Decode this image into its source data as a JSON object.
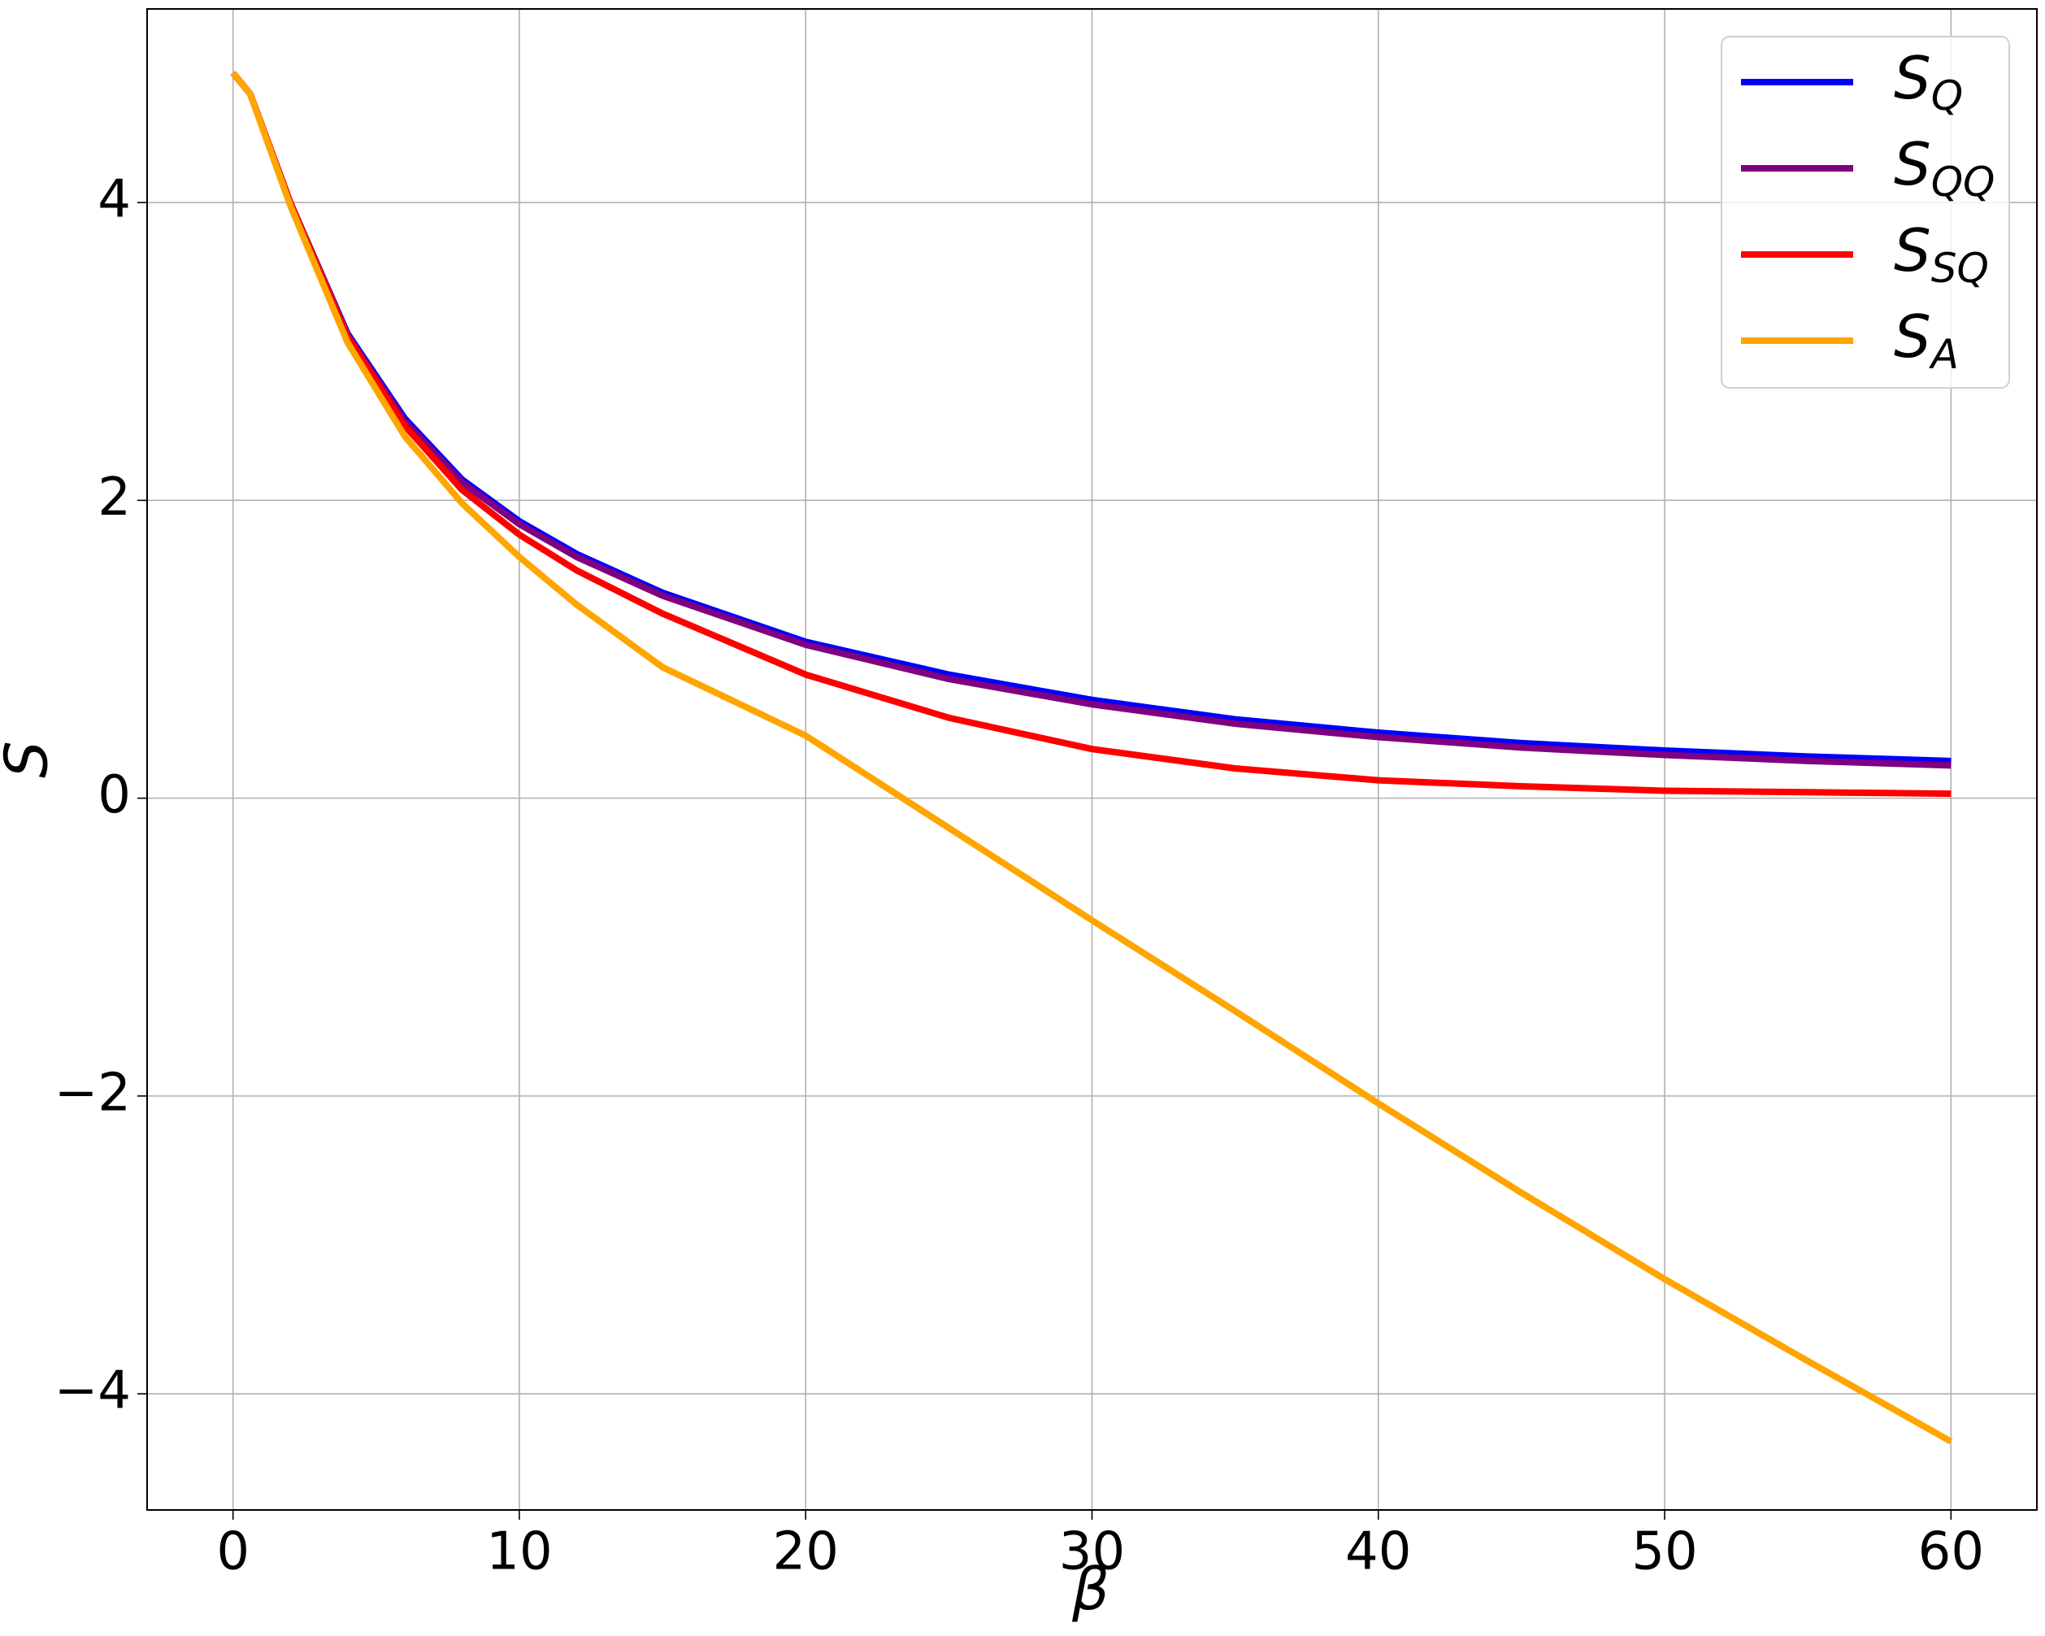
{
  "chart_data": {
    "type": "line",
    "x_label": "β",
    "y_label": "S",
    "x": [
      0,
      0.6,
      2,
      4,
      6,
      8,
      10,
      12,
      15,
      20,
      25,
      30,
      35,
      40,
      45,
      50,
      55,
      60
    ],
    "series": [
      {
        "name": "S_Q",
        "color": "#0000ff",
        "values": [
          4.87,
          4.73,
          4.0,
          3.12,
          2.55,
          2.14,
          1.86,
          1.64,
          1.38,
          1.05,
          0.83,
          0.66,
          0.53,
          0.44,
          0.37,
          0.32,
          0.28,
          0.25
        ]
      },
      {
        "name": "S_QQ",
        "color": "#800080",
        "values": [
          4.87,
          4.73,
          4.0,
          3.11,
          2.53,
          2.12,
          1.84,
          1.62,
          1.36,
          1.03,
          0.8,
          0.63,
          0.5,
          0.41,
          0.34,
          0.29,
          0.25,
          0.22
        ]
      },
      {
        "name": "S_SQ",
        "color": "#ff0000",
        "values": [
          4.87,
          4.73,
          4.0,
          3.1,
          2.5,
          2.07,
          1.77,
          1.53,
          1.24,
          0.83,
          0.54,
          0.33,
          0.2,
          0.12,
          0.08,
          0.05,
          0.04,
          0.03
        ]
      },
      {
        "name": "S_A",
        "color": "#ffa500",
        "values": [
          4.87,
          4.73,
          3.98,
          3.06,
          2.43,
          1.98,
          1.62,
          1.3,
          0.88,
          0.42,
          -0.2,
          -0.82,
          -1.43,
          -2.05,
          -2.65,
          -3.23,
          -3.78,
          -4.32
        ]
      }
    ],
    "xlim": [
      -3,
      63
    ],
    "ylim": [
      -4.78,
      5.3
    ],
    "xticks": [
      0,
      10,
      20,
      30,
      40,
      50,
      60
    ],
    "yticks": [
      {
        "value": -4,
        "label": "−4"
      },
      {
        "value": -2,
        "label": "−2"
      },
      0,
      2,
      4
    ],
    "grid": true,
    "legend": "upper right"
  }
}
